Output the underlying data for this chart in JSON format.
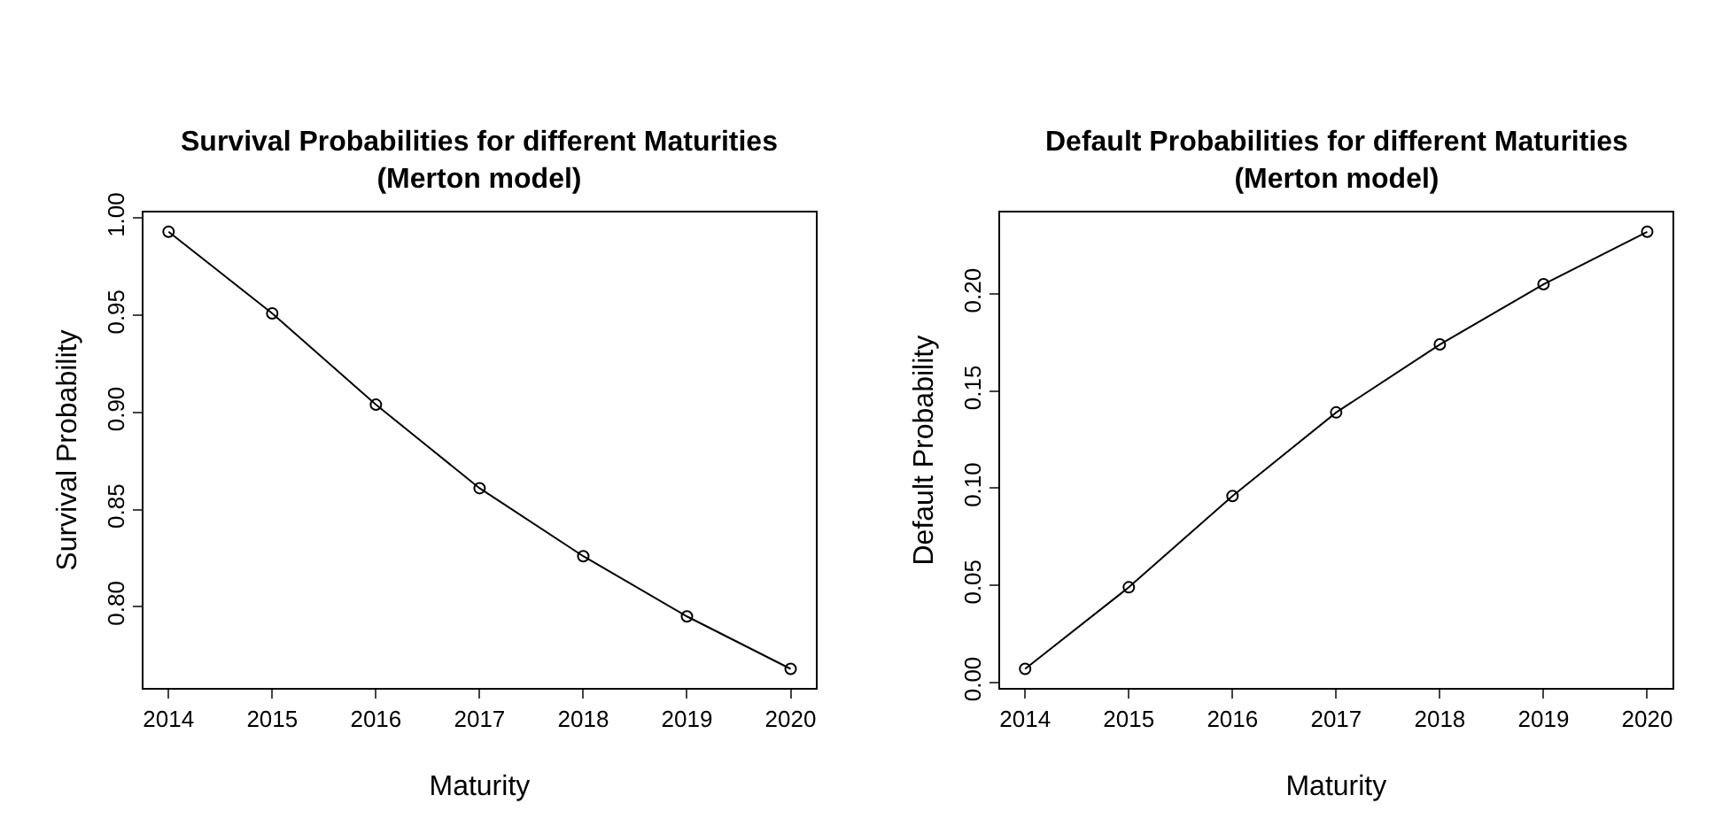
{
  "chart_data": [
    {
      "type": "line",
      "title": "Survival Probabilities for different Maturities\n(Merton model)",
      "xlabel": "Maturity",
      "ylabel": "Survival Probability",
      "x": [
        2014,
        2015,
        2016,
        2017,
        2018,
        2019,
        2020
      ],
      "values": [
        0.993,
        0.951,
        0.904,
        0.861,
        0.826,
        0.795,
        0.768
      ],
      "color": "#000000",
      "marker": "circle",
      "xlim": [
        2013.76,
        2020.24
      ],
      "ylim": [
        0.758,
        1.003
      ],
      "xticks": [
        2014,
        2015,
        2016,
        2017,
        2018,
        2019,
        2020
      ],
      "yticks": [
        {
          "value": 0.8,
          "label": "0.80"
        },
        {
          "value": 0.85,
          "label": "0.85"
        },
        {
          "value": 0.9,
          "label": "0.90"
        },
        {
          "value": 0.95,
          "label": "0.95"
        },
        {
          "value": 1.0,
          "label": "1.00"
        }
      ]
    },
    {
      "type": "line",
      "title": "Default Probabilities for different Maturities\n(Merton model)",
      "xlabel": "Maturity",
      "ylabel": "Default Probability",
      "x": [
        2014,
        2015,
        2016,
        2017,
        2018,
        2019,
        2020
      ],
      "values": [
        0.007,
        0.049,
        0.096,
        0.139,
        0.174,
        0.205,
        0.232
      ],
      "color": "#000000",
      "marker": "circle",
      "xlim": [
        2013.76,
        2020.24
      ],
      "ylim": [
        -0.003,
        0.242
      ],
      "xticks": [
        2014,
        2015,
        2016,
        2017,
        2018,
        2019,
        2020
      ],
      "yticks": [
        {
          "value": 0.0,
          "label": "0.00"
        },
        {
          "value": 0.05,
          "label": "0.05"
        },
        {
          "value": 0.1,
          "label": "0.10"
        },
        {
          "value": 0.15,
          "label": "0.15"
        },
        {
          "value": 0.2,
          "label": "0.20"
        }
      ]
    }
  ]
}
